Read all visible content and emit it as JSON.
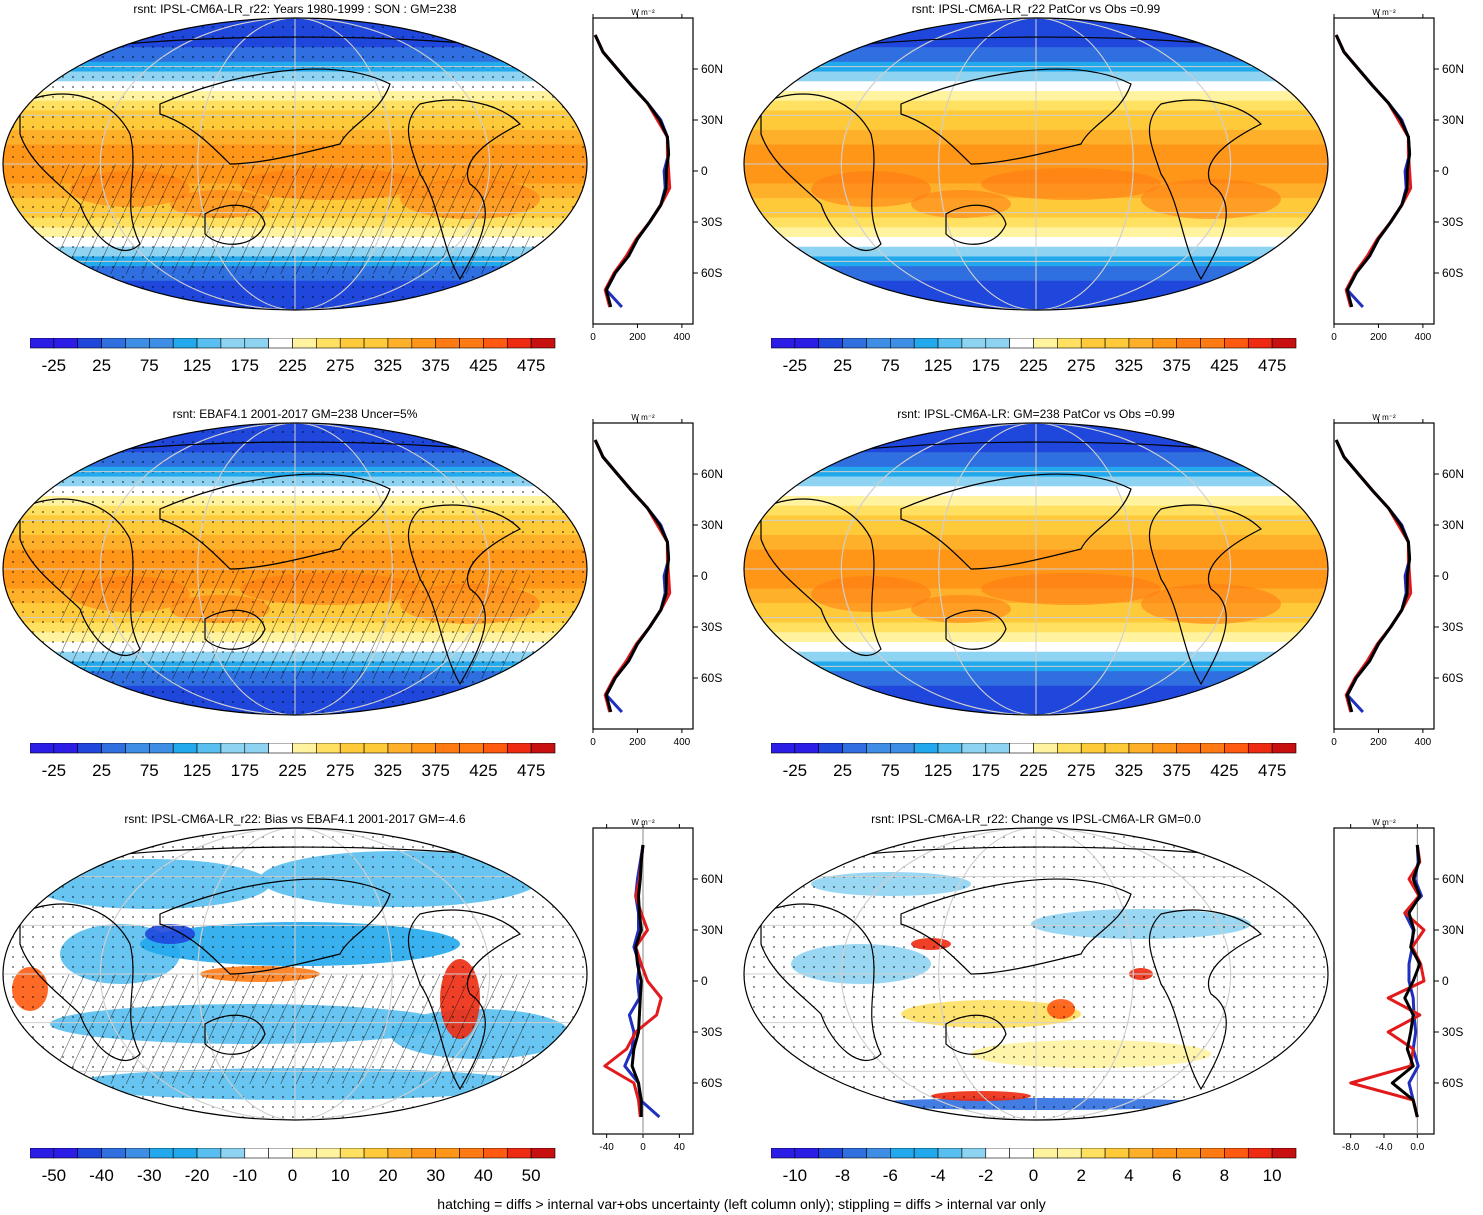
{
  "figure": {
    "footer": "hatching = diffs > internal var+obs uncertainty (left column only); stippling = diffs > internal var only",
    "profile_unit": "W m⁻²"
  },
  "colors": {
    "model": "#000000",
    "obs": "#e31a1c",
    "alt": "#1f2fbf",
    "mean_ramp": [
      "#2b1de6",
      "#1f47dc",
      "#2f6fe0",
      "#3f8ee6",
      "#22a8ec",
      "#58bff0",
      "#8fd3f2",
      "#ffffff",
      "#fff3a0",
      "#ffe060",
      "#ffca3a",
      "#ffb02a",
      "#ff9618",
      "#ff7a12",
      "#ff5a10",
      "#ee2a10",
      "#c81010"
    ],
    "diff_ramp": [
      "#2b1de6",
      "#1f47dc",
      "#2f6fe0",
      "#3f8ee6",
      "#22a8ec",
      "#58bff0",
      "#8fd3f2",
      "#ffffff",
      "#ffffff",
      "#fff3a0",
      "#ffe060",
      "#ffca3a",
      "#ffb02a",
      "#ff9618",
      "#ff7a12",
      "#ff5a10",
      "#ee2a10",
      "#c81010"
    ]
  },
  "panels": [
    {
      "title": "rsnt: IPSL-CM6A-LR_r22: Years 1980-1999 : SON : GM=238",
      "colorbar_labels": [
        "-25",
        "25",
        "75",
        "125",
        "175",
        "225",
        "275",
        "325",
        "375",
        "425",
        "475"
      ],
      "profile_ticks": [
        "0",
        "200",
        "400"
      ],
      "lat_labels": [
        "60N",
        "30N",
        "0",
        "30S",
        "60S"
      ]
    },
    {
      "title": "rsnt: IPSL-CM6A-LR_r22 PatCor vs Obs =0.99",
      "colorbar_labels": [
        "-25",
        "25",
        "75",
        "125",
        "175",
        "225",
        "275",
        "325",
        "375",
        "425",
        "475"
      ],
      "profile_ticks": [
        "0",
        "200",
        "400"
      ],
      "lat_labels": [
        "60N",
        "30N",
        "0",
        "30S",
        "60S"
      ]
    },
    {
      "title": "rsnt: EBAF4.1 2001-2017 GM=238 Uncer=5%",
      "colorbar_labels": [
        "-25",
        "25",
        "75",
        "125",
        "175",
        "225",
        "275",
        "325",
        "375",
        "425",
        "475"
      ],
      "profile_ticks": [
        "0",
        "200",
        "400"
      ],
      "lat_labels": [
        "60N",
        "30N",
        "0",
        "30S",
        "60S"
      ]
    },
    {
      "title": "rsnt: IPSL-CM6A-LR: GM=238 PatCor vs Obs =0.99",
      "colorbar_labels": [
        "-25",
        "25",
        "75",
        "125",
        "175",
        "225",
        "275",
        "325",
        "375",
        "425",
        "475"
      ],
      "profile_ticks": [
        "0",
        "200",
        "400"
      ],
      "lat_labels": [
        "60N",
        "30N",
        "0",
        "30S",
        "60S"
      ]
    },
    {
      "title": "rsnt: IPSL-CM6A-LR_r22: Bias vs EBAF4.1 2001-2017  GM=-4.6",
      "colorbar_labels": [
        "-50",
        "-40",
        "-30",
        "-20",
        "-10",
        "0",
        "10",
        "20",
        "30",
        "40",
        "50"
      ],
      "profile_ticks": [
        "-40",
        "0",
        "40"
      ],
      "lat_labels": [
        "60N",
        "30N",
        "0",
        "30S",
        "60S"
      ]
    },
    {
      "title": "rsnt: IPSL-CM6A-LR_r22: Change vs IPSL-CM6A-LR GM=0.0",
      "colorbar_labels": [
        "-10",
        "-8",
        "-6",
        "-4",
        "-2",
        "0",
        "2",
        "4",
        "6",
        "8",
        "10"
      ],
      "profile_ticks": [
        "-8.0",
        "-4.0",
        "0.0"
      ],
      "lat_labels": [
        "60N",
        "30N",
        "0",
        "30S",
        "60S"
      ]
    }
  ],
  "chart_data": [
    {
      "type": "heatmap",
      "title": "rsnt: IPSL-CM6A-LR_r22: Years 1980-1999 : SON : GM=238",
      "variable": "rsnt",
      "units": "W m-2",
      "colorbar": {
        "min": -50,
        "max": 500,
        "step": 25
      },
      "zonal_mean_profile": {
        "lat": [
          80,
          70,
          60,
          50,
          40,
          30,
          20,
          10,
          0,
          -10,
          -20,
          -30,
          -40,
          -50,
          -60,
          -70,
          -80
        ],
        "series": [
          {
            "values": [
              10,
              45,
              110,
              175,
              245,
              300,
              335,
              340,
              330,
              330,
              305,
              255,
              200,
              160,
              100,
              60,
              80
            ]
          },
          {
            "values": [
              10,
              45,
              110,
              175,
              245,
              290,
              335,
              335,
              340,
              345,
              305,
              255,
              195,
              150,
              95,
              55,
              75
            ]
          },
          {
            "values": [
              10,
              45,
              110,
              175,
              245,
              305,
              335,
              340,
              320,
              325,
              305,
              255,
              200,
              160,
              100,
              60,
              130
            ]
          }
        ],
        "xlim": [
          0,
          450
        ]
      }
    },
    {
      "type": "heatmap",
      "title": "rsnt: IPSL-CM6A-LR_r22 PatCor vs Obs =0.99",
      "variable": "rsnt",
      "units": "W m-2",
      "colorbar": {
        "min": -50,
        "max": 500,
        "step": 25
      },
      "zonal_mean_profile": {
        "lat": [
          80,
          70,
          60,
          50,
          40,
          30,
          20,
          10,
          0,
          -10,
          -20,
          -30,
          -40,
          -50,
          -60,
          -70,
          -80
        ],
        "series": [
          {
            "values": [
              10,
              45,
              110,
              175,
              245,
              300,
              335,
              340,
              330,
              330,
              305,
              255,
              200,
              160,
              100,
              60,
              80
            ]
          },
          {
            "values": [
              10,
              45,
              110,
              175,
              245,
              290,
              335,
              335,
              340,
              345,
              305,
              255,
              195,
              150,
              95,
              55,
              75
            ]
          },
          {
            "values": [
              10,
              45,
              110,
              175,
              245,
              305,
              335,
              340,
              320,
              325,
              305,
              255,
              200,
              160,
              100,
              60,
              130
            ]
          }
        ],
        "xlim": [
          0,
          450
        ]
      }
    },
    {
      "type": "heatmap",
      "title": "rsnt: EBAF4.1 2001-2017 GM=238 Uncer=5%",
      "variable": "rsnt",
      "units": "W m-2",
      "colorbar": {
        "min": -50,
        "max": 500,
        "step": 25
      },
      "zonal_mean_profile": {
        "lat": [
          80,
          70,
          60,
          50,
          40,
          30,
          20,
          10,
          0,
          -10,
          -20,
          -30,
          -40,
          -50,
          -60,
          -70,
          -80
        ],
        "series": [
          {
            "values": [
              10,
              45,
              110,
              175,
              245,
              300,
              335,
              340,
              330,
              330,
              305,
              255,
              200,
              160,
              100,
              60,
              80
            ]
          },
          {
            "values": [
              10,
              45,
              110,
              175,
              245,
              290,
              335,
              335,
              340,
              345,
              305,
              255,
              195,
              150,
              95,
              55,
              75
            ]
          },
          {
            "values": [
              10,
              45,
              110,
              175,
              245,
              305,
              335,
              340,
              320,
              325,
              305,
              255,
              200,
              160,
              100,
              60,
              130
            ]
          }
        ],
        "xlim": [
          0,
          450
        ]
      }
    },
    {
      "type": "heatmap",
      "title": "rsnt: IPSL-CM6A-LR: GM=238 PatCor vs Obs =0.99",
      "variable": "rsnt",
      "units": "W m-2",
      "colorbar": {
        "min": -50,
        "max": 500,
        "step": 25
      },
      "zonal_mean_profile": {
        "lat": [
          80,
          70,
          60,
          50,
          40,
          30,
          20,
          10,
          0,
          -10,
          -20,
          -30,
          -40,
          -50,
          -60,
          -70,
          -80
        ],
        "series": [
          {
            "values": [
              10,
              45,
              110,
              175,
              245,
              300,
              335,
              340,
              330,
              330,
              305,
              255,
              200,
              160,
              100,
              60,
              80
            ]
          },
          {
            "values": [
              10,
              45,
              110,
              175,
              245,
              290,
              335,
              335,
              340,
              345,
              305,
              255,
              195,
              150,
              95,
              55,
              75
            ]
          },
          {
            "values": [
              10,
              45,
              110,
              175,
              245,
              305,
              335,
              340,
              320,
              325,
              305,
              255,
              200,
              160,
              100,
              60,
              130
            ]
          }
        ],
        "xlim": [
          0,
          450
        ]
      }
    },
    {
      "type": "heatmap",
      "title": "rsnt: IPSL-CM6A-LR_r22: Bias vs EBAF4.1 2001-2017  GM=-4.6",
      "variable": "rsnt",
      "units": "W m-2",
      "colorbar": {
        "min": -55,
        "max": 55,
        "step": 5
      },
      "zonal_mean_profile": {
        "lat": [
          80,
          70,
          60,
          50,
          40,
          30,
          20,
          10,
          0,
          -10,
          -20,
          -30,
          -40,
          -50,
          -60,
          -70,
          -80
        ],
        "series": [
          {
            "values": [
              0,
              -2,
              -3,
              -5,
              -4,
              -2,
              -8,
              -6,
              -2,
              -3,
              -4,
              -5,
              -10,
              -12,
              -5,
              -2,
              -2
            ]
          },
          {
            "values": [
              0,
              -2,
              -4,
              -8,
              -2,
              5,
              -8,
              -2,
              5,
              20,
              15,
              -8,
              -18,
              -42,
              -10,
              -5,
              -3
            ]
          },
          {
            "values": [
              0,
              -3,
              -6,
              -8,
              -5,
              -5,
              -10,
              -4,
              -6,
              -4,
              -15,
              -10,
              -12,
              -20,
              -5,
              -3,
              18
            ]
          }
        ],
        "xlim": [
          -55,
          55
        ]
      }
    },
    {
      "type": "heatmap",
      "title": "rsnt: IPSL-CM6A-LR_r22: Change vs IPSL-CM6A-LR GM=0.0",
      "variable": "rsnt",
      "units": "W m-2",
      "colorbar": {
        "min": -11,
        "max": 11,
        "step": 1
      },
      "zonal_mean_profile": {
        "lat": [
          80,
          70,
          60,
          50,
          40,
          30,
          20,
          10,
          0,
          -10,
          -20,
          -30,
          -40,
          -50,
          -60,
          -70,
          -80
        ],
        "series": [
          {
            "values": [
              0,
              0.2,
              -0.5,
              0.3,
              -1.0,
              -0.4,
              -0.8,
              0.3,
              -0.5,
              -1.5,
              -0.5,
              -0.8,
              -1.2,
              -0.5,
              -3.0,
              -0.5,
              0
            ]
          },
          {
            "values": [
              0,
              0.3,
              -1.0,
              0.2,
              -1.5,
              0.8,
              -0.6,
              0.4,
              0.8,
              -3.5,
              0.3,
              -3.5,
              -0.5,
              -0.8,
              -8.0,
              -0.5,
              0
            ]
          },
          {
            "values": [
              0,
              0.1,
              -0.3,
              0.5,
              -1.5,
              -0.5,
              -0.6,
              -1.0,
              -1.0,
              -0.5,
              -0.4,
              -0.2,
              -0.5,
              0.1,
              -1.0,
              -0.5,
              0
            ]
          }
        ],
        "xlim": [
          -10,
          2
        ]
      }
    }
  ]
}
